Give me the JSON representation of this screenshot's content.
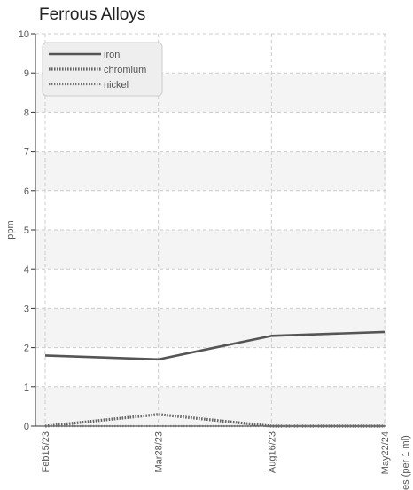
{
  "chart_data": {
    "type": "line",
    "title": "Ferrous Alloys",
    "ylabel": "ppm",
    "xlabel_partial": "es (per 1 ml)",
    "categories": [
      "Feb15/23",
      "Mar28/23",
      "Aug16/23",
      "May22/24"
    ],
    "ylim": [
      0,
      10
    ],
    "yticks": [
      "0",
      "1",
      "2",
      "3",
      "4",
      "5",
      "6",
      "7",
      "8",
      "9",
      "10"
    ],
    "grid": true,
    "legend_position": "top-left",
    "series": [
      {
        "name": "iron",
        "values": [
          1.8,
          1.7,
          2.3,
          2.4
        ],
        "color": "#555555",
        "style": "solid"
      },
      {
        "name": "chromium",
        "values": [
          0.0,
          0.3,
          0.0,
          0.0
        ],
        "color": "#666666",
        "style": "dotted"
      },
      {
        "name": "nickel",
        "values": [
          0.0,
          0.0,
          0.0,
          0.0
        ],
        "color": "#777777",
        "style": "dotted-thin"
      }
    ]
  }
}
